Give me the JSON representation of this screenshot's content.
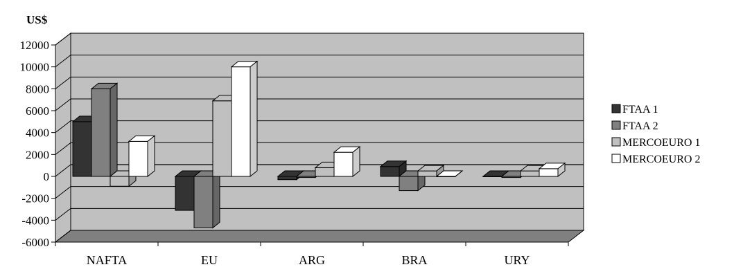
{
  "chart_data": {
    "type": "bar",
    "ylabel": "US$",
    "categories": [
      "NAFTA",
      "EU",
      "ARG",
      "BRA",
      "URY"
    ],
    "series": [
      {
        "name": "FTAA 1",
        "values": [
          5000,
          -3100,
          -300,
          900,
          0
        ],
        "color": "#333333"
      },
      {
        "name": "FTAA 2",
        "values": [
          8000,
          -4700,
          -100,
          -1300,
          -100
        ],
        "color": "#808080"
      },
      {
        "name": "MERCOEURO 1",
        "values": [
          -900,
          6900,
          800,
          500,
          500
        ],
        "color": "#c0c0c0"
      },
      {
        "name": "MERCOEURO 2",
        "values": [
          3200,
          10000,
          2200,
          0,
          700
        ],
        "color": "#ffffff"
      }
    ],
    "yticks": [
      12000,
      10000,
      8000,
      6000,
      4000,
      2000,
      0,
      -2000,
      -4000,
      -6000
    ],
    "ylim": [
      -6000,
      12000
    ],
    "grid": true,
    "three_d": true,
    "legend_position": "right",
    "plot_background": "#c0c0c0",
    "floor_color": "#808080"
  }
}
